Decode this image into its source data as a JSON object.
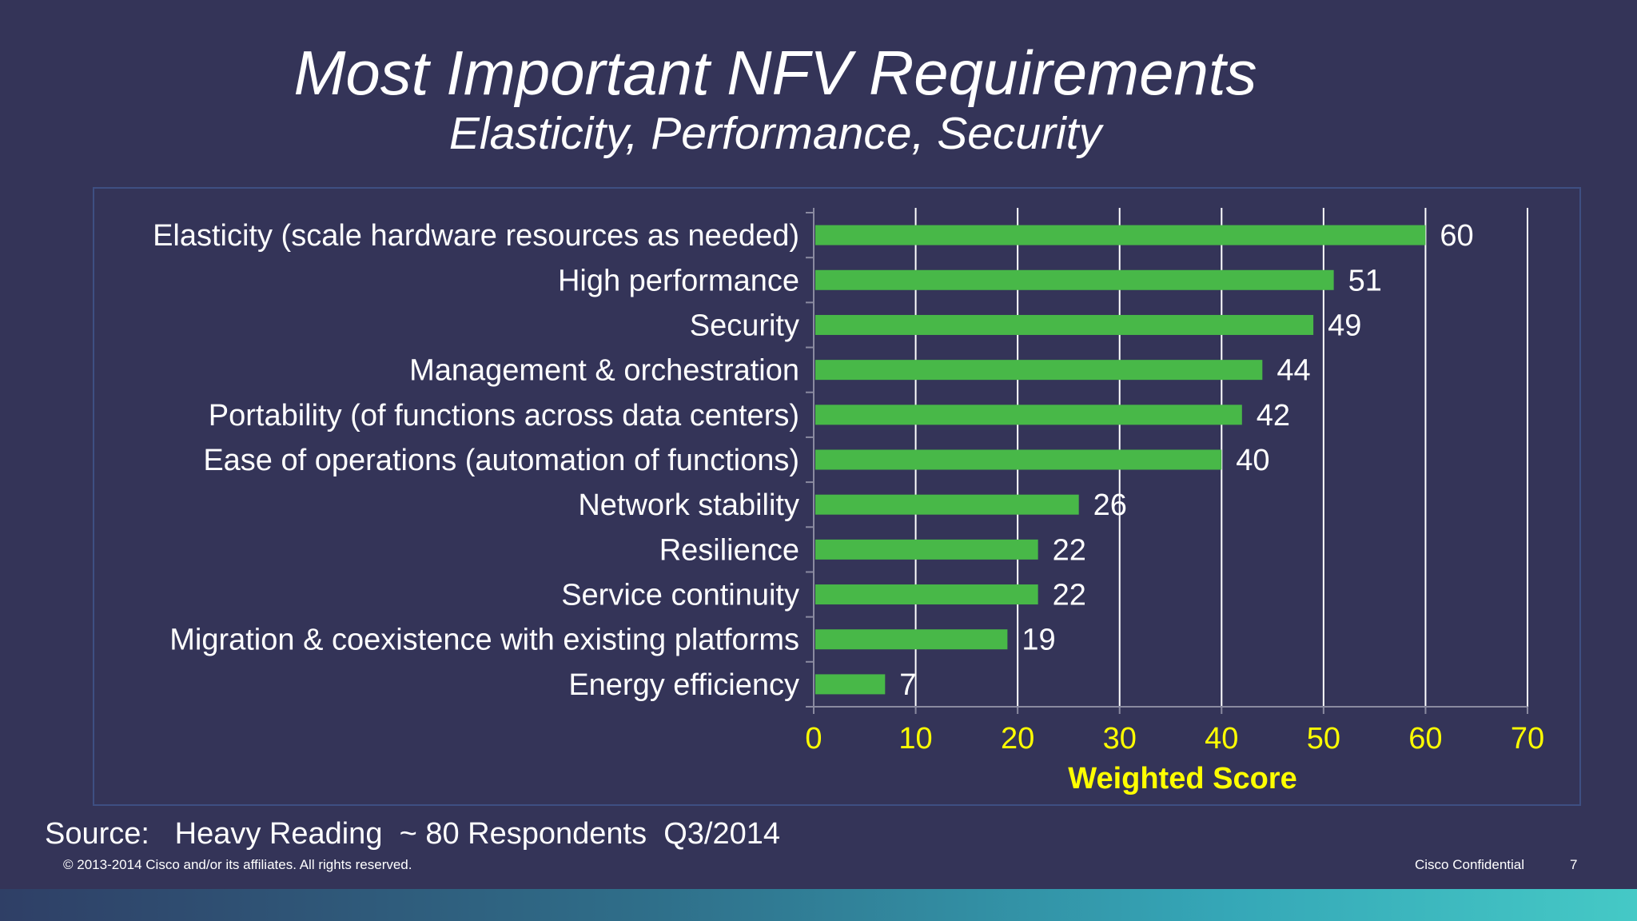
{
  "slide": {
    "title": "Most Important NFV Requirements",
    "subtitle": "Elasticity, Performance, Security",
    "source": "Source:   Heavy Reading  ~ 80 Respondents  Q3/2014",
    "copyright": "© 2013-2014  Cisco and/or its affiliates. All rights reserved.",
    "confidential": "Cisco Confidential",
    "page_number": "7"
  },
  "colors": {
    "background": "#343458",
    "bar": "#48b848",
    "axis_tick_labels": "#ffff00",
    "text": "#ffffff"
  },
  "chart_data": {
    "type": "bar",
    "orientation": "horizontal",
    "categories": [
      "Elasticity (scale hardware resources as needed)",
      "High performance",
      "Security",
      "Management & orchestration",
      "Portability (of functions across data centers)",
      "Ease of operations (automation of functions)",
      "Network stability",
      "Resilience",
      "Service continuity",
      "Migration & coexistence with existing platforms",
      "Energy efficiency"
    ],
    "values": [
      60,
      51,
      49,
      44,
      42,
      40,
      26,
      22,
      22,
      19,
      7
    ],
    "xlabel": "Weighted Score",
    "xlim": [
      0,
      70
    ],
    "xticks": [
      0,
      10,
      20,
      30,
      40,
      50,
      60,
      70
    ],
    "grid": "vertical",
    "data_labels": true,
    "legend": "none"
  }
}
